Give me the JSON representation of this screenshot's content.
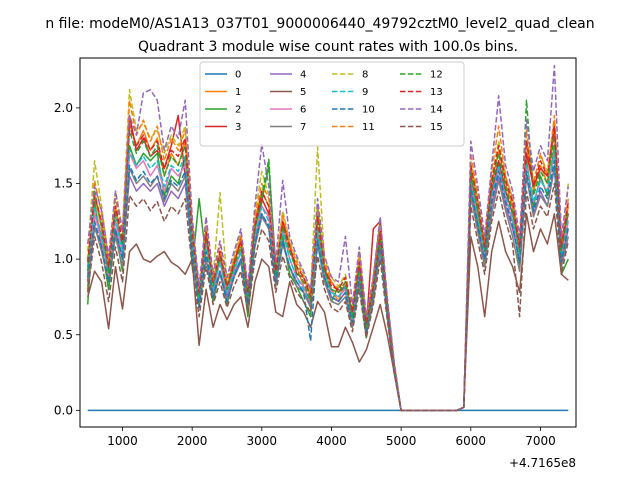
{
  "suptitle": "n file: modeM0/AS1A13_037T01_9000006440_49792cztM0_level2_quad_clean",
  "chart_data": {
    "type": "line",
    "title": "Quadrant 3 module wise count rates with 100.0s bins.",
    "xlabel": "",
    "ylabel": "",
    "x_offset_label": "+4.7165e8",
    "xlim": [
      390,
      7510
    ],
    "ylim": [
      -0.11,
      2.33
    ],
    "xticks": [
      1000,
      2000,
      3000,
      4000,
      5000,
      6000,
      7000
    ],
    "xtick_labels": [
      "1000",
      "2000",
      "3000",
      "4000",
      "5000",
      "6000",
      "7000"
    ],
    "yticks": [
      0.0,
      0.5,
      1.0,
      1.5,
      2.0
    ],
    "ytick_labels": [
      "0.0",
      "0.5",
      "1.0",
      "1.5",
      "2.0"
    ],
    "grid": false,
    "legend_location": "top-center",
    "legend_columns": 4,
    "x": [
      500,
      600,
      700,
      800,
      900,
      1000,
      1100,
      1200,
      1300,
      1400,
      1500,
      1600,
      1700,
      1800,
      1900,
      2000,
      2100,
      2200,
      2300,
      2400,
      2500,
      2600,
      2700,
      2800,
      2900,
      3000,
      3100,
      3200,
      3300,
      3400,
      3500,
      3600,
      3700,
      3800,
      3900,
      4000,
      4100,
      4200,
      4300,
      4400,
      4500,
      4600,
      4700,
      4800,
      4900,
      5000,
      5800,
      5900,
      6000,
      6100,
      6200,
      6300,
      6400,
      6500,
      6600,
      6700,
      6800,
      6900,
      7000,
      7100,
      7200,
      7300,
      7400
    ],
    "series": [
      {
        "name": "0",
        "color": "#1f77b4",
        "dash": "solid",
        "values": [
          0.0,
          0.0,
          0.0,
          0.0,
          0.0,
          0.0,
          0.0,
          0.0,
          0.0,
          0.0,
          0.0,
          0.0,
          0.0,
          0.0,
          0.0,
          0.0,
          0.0,
          0.0,
          0.0,
          0.0,
          0.0,
          0.0,
          0.0,
          0.0,
          0.0,
          0.0,
          0.0,
          0.0,
          0.0,
          0.0,
          0.0,
          0.0,
          0.0,
          0.0,
          0.0,
          0.0,
          0.0,
          0.0,
          0.0,
          0.0,
          0.0,
          0.0,
          0.0,
          0.0,
          0.0,
          0.0,
          0.0,
          0.0,
          0.0,
          0.0,
          0.0,
          0.0,
          0.0,
          0.0,
          0.0,
          0.0,
          0.0,
          0.0,
          0.0,
          0.0,
          0.0,
          0.0,
          0.0
        ]
      },
      {
        "name": "1",
        "color": "#ff7f0e",
        "dash": "solid",
        "values": [
          0.8,
          1.42,
          1.2,
          0.88,
          1.35,
          1.05,
          1.9,
          1.75,
          1.85,
          1.72,
          1.8,
          1.55,
          1.7,
          1.62,
          1.78,
          1.1,
          0.7,
          1.2,
          0.78,
          1.05,
          0.75,
          0.98,
          1.1,
          0.72,
          1.25,
          1.45,
          1.35,
          0.85,
          1.22,
          1.05,
          0.95,
          0.82,
          0.7,
          1.3,
          0.95,
          0.8,
          0.72,
          0.85,
          0.6,
          1.0,
          0.55,
          0.78,
          1.2,
          0.7,
          0.3,
          0.0,
          0.0,
          0.02,
          1.6,
          1.35,
          1.05,
          1.5,
          1.72,
          1.5,
          1.35,
          1.05,
          1.78,
          1.45,
          1.62,
          1.5,
          1.85,
          1.05,
          1.35
        ]
      },
      {
        "name": "2",
        "color": "#2ca02c",
        "dash": "solid",
        "values": [
          0.7,
          1.38,
          1.08,
          0.8,
          1.18,
          0.92,
          1.75,
          1.62,
          1.7,
          1.65,
          1.7,
          1.42,
          1.55,
          1.5,
          1.68,
          0.95,
          1.4,
          1.0,
          0.72,
          0.92,
          0.7,
          0.9,
          1.0,
          0.62,
          1.1,
          1.38,
          1.62,
          0.95,
          1.15,
          0.9,
          0.82,
          0.72,
          0.62,
          1.35,
          0.88,
          0.72,
          0.82,
          0.8,
          0.55,
          0.85,
          0.48,
          0.88,
          1.26,
          0.66,
          0.25,
          0.0,
          0.0,
          0.02,
          1.5,
          1.25,
          0.95,
          1.42,
          1.62,
          1.4,
          1.25,
          0.95,
          1.65,
          1.35,
          1.55,
          1.42,
          1.75,
          0.9,
          1.0
        ]
      },
      {
        "name": "3",
        "color": "#d62728",
        "dash": "solid",
        "values": [
          0.85,
          1.3,
          1.15,
          0.92,
          1.25,
          1.1,
          1.95,
          1.72,
          1.8,
          1.68,
          1.72,
          1.6,
          1.75,
          1.95,
          1.55,
          1.2,
          0.75,
          1.15,
          0.82,
          1.0,
          0.82,
          0.95,
          1.15,
          0.78,
          1.2,
          1.4,
          1.3,
          0.9,
          1.25,
          1.1,
          0.9,
          0.88,
          0.78,
          1.15,
          0.92,
          0.85,
          0.78,
          0.82,
          0.65,
          0.95,
          0.55,
          1.2,
          1.25,
          0.72,
          0.3,
          0.0,
          0.0,
          0.02,
          1.55,
          1.3,
          1.1,
          1.45,
          1.65,
          1.45,
          1.3,
          1.1,
          1.7,
          1.48,
          1.6,
          1.55,
          1.9,
          1.1,
          1.3
        ]
      },
      {
        "name": "4",
        "color": "#9467bd",
        "dash": "solid",
        "values": [
          0.95,
          1.2,
          1.1,
          0.95,
          1.2,
          1.0,
          1.55,
          1.45,
          1.5,
          1.45,
          1.5,
          1.35,
          1.45,
          1.4,
          1.5,
          1.05,
          0.72,
          1.0,
          0.78,
          0.92,
          0.75,
          0.9,
          1.0,
          0.7,
          1.1,
          1.3,
          1.2,
          0.85,
          1.1,
          0.95,
          0.85,
          0.78,
          0.7,
          1.1,
          0.85,
          0.75,
          0.72,
          0.78,
          0.6,
          0.85,
          0.55,
          0.75,
          1.05,
          0.65,
          0.28,
          0.0,
          0.0,
          0.02,
          1.45,
          1.2,
          1.0,
          1.35,
          1.55,
          1.35,
          1.2,
          1.0,
          1.55,
          1.3,
          1.45,
          1.35,
          1.6,
          0.98,
          1.2
        ]
      },
      {
        "name": "5",
        "color": "#8c564b",
        "dash": "solid",
        "values": [
          0.75,
          0.92,
          0.85,
          0.54,
          0.95,
          0.67,
          1.05,
          1.1,
          1.0,
          0.98,
          1.02,
          1.05,
          0.98,
          0.95,
          0.9,
          1.0,
          0.43,
          0.8,
          0.55,
          0.7,
          0.6,
          0.7,
          0.75,
          0.55,
          0.85,
          1.0,
          0.95,
          0.65,
          0.62,
          0.85,
          0.7,
          0.65,
          0.55,
          0.72,
          0.65,
          0.42,
          0.42,
          0.55,
          0.45,
          0.32,
          0.4,
          0.55,
          0.7,
          0.5,
          0.25,
          0.0,
          0.0,
          0.02,
          1.15,
          0.95,
          0.62,
          1.05,
          1.25,
          1.05,
          0.95,
          0.78,
          1.3,
          1.05,
          1.2,
          1.1,
          1.3,
          0.9,
          0.86
        ]
      },
      {
        "name": "6",
        "color": "#e377c2",
        "dash": "solid",
        "values": [
          0.9,
          1.3,
          1.12,
          0.9,
          1.25,
          1.05,
          1.7,
          1.6,
          1.65,
          1.55,
          1.62,
          1.45,
          1.6,
          1.55,
          1.62,
          1.15,
          0.75,
          1.1,
          0.8,
          0.98,
          0.78,
          0.92,
          1.05,
          0.72,
          1.15,
          1.35,
          1.28,
          0.9,
          1.2,
          1.0,
          0.88,
          0.82,
          0.72,
          1.2,
          0.9,
          0.78,
          0.75,
          0.8,
          0.6,
          0.9,
          0.55,
          0.8,
          1.15,
          0.68,
          0.28,
          0.0,
          0.0,
          0.02,
          1.5,
          1.28,
          1.05,
          1.4,
          1.6,
          1.4,
          1.25,
          1.02,
          1.62,
          1.38,
          1.52,
          1.45,
          1.7,
          1.02,
          1.25
        ]
      },
      {
        "name": "7",
        "color": "#7f7f7f",
        "dash": "solid",
        "values": [
          0.82,
          1.22,
          1.05,
          0.85,
          1.15,
          0.95,
          1.6,
          1.5,
          1.55,
          1.48,
          1.55,
          1.38,
          1.5,
          1.45,
          1.55,
          1.05,
          0.68,
          1.0,
          0.75,
          0.9,
          0.72,
          0.88,
          0.98,
          0.68,
          1.08,
          1.28,
          1.2,
          0.82,
          1.1,
          0.95,
          0.82,
          0.78,
          0.68,
          1.1,
          0.85,
          0.72,
          0.7,
          0.75,
          0.55,
          0.85,
          0.5,
          0.72,
          1.08,
          0.62,
          0.26,
          0.0,
          0.0,
          0.02,
          1.42,
          1.18,
          0.95,
          1.3,
          1.52,
          1.32,
          1.15,
          0.92,
          1.55,
          1.28,
          1.42,
          1.35,
          1.62,
          0.95,
          1.15
        ]
      },
      {
        "name": "8",
        "color": "#bcbd22",
        "dash": "dashed",
        "values": [
          1.05,
          1.65,
          1.35,
          1.0,
          1.45,
          1.2,
          2.12,
          1.85,
          1.9,
          1.8,
          1.85,
          1.7,
          1.82,
          1.75,
          1.88,
          1.25,
          0.8,
          1.25,
          0.88,
          1.44,
          0.85,
          1.02,
          1.18,
          0.8,
          1.3,
          1.58,
          1.42,
          0.95,
          1.32,
          1.12,
          1.0,
          0.9,
          0.78,
          1.74,
          1.0,
          0.88,
          0.82,
          0.9,
          0.68,
          1.05,
          0.6,
          0.85,
          1.22,
          0.75,
          0.32,
          0.0,
          0.0,
          0.02,
          1.65,
          1.4,
          1.12,
          1.55,
          1.78,
          1.55,
          1.4,
          1.12,
          1.82,
          1.52,
          1.68,
          1.58,
          1.92,
          1.12,
          1.5
        ]
      },
      {
        "name": "9",
        "color": "#17becf",
        "dash": "dashed",
        "values": [
          0.95,
          1.35,
          1.15,
          0.92,
          1.28,
          1.05,
          1.72,
          1.62,
          1.68,
          1.6,
          1.65,
          1.48,
          1.62,
          1.58,
          1.68,
          1.12,
          0.72,
          1.1,
          0.8,
          0.98,
          0.78,
          0.92,
          1.05,
          0.72,
          1.15,
          1.35,
          1.25,
          0.88,
          1.18,
          1.0,
          0.88,
          0.8,
          0.72,
          1.18,
          0.9,
          0.78,
          0.75,
          0.82,
          0.6,
          0.92,
          0.55,
          0.8,
          1.12,
          0.68,
          0.28,
          0.0,
          0.0,
          0.02,
          1.52,
          1.28,
          1.05,
          1.42,
          1.62,
          1.42,
          1.28,
          1.02,
          1.62,
          1.38,
          1.52,
          1.45,
          1.72,
          1.02,
          1.28
        ]
      },
      {
        "name": "10",
        "color": "#1f77b4",
        "dash": "dashed",
        "values": [
          0.88,
          1.25,
          1.08,
          0.85,
          1.2,
          1.0,
          1.62,
          1.52,
          1.58,
          1.5,
          1.55,
          1.4,
          1.52,
          1.48,
          1.58,
          1.05,
          0.68,
          1.05,
          0.75,
          0.92,
          0.72,
          0.88,
          1.0,
          0.7,
          1.1,
          1.3,
          1.22,
          0.85,
          1.12,
          0.95,
          0.85,
          0.78,
          0.46,
          1.12,
          0.88,
          0.75,
          0.72,
          0.78,
          0.58,
          0.88,
          0.52,
          0.78,
          1.1,
          0.65,
          0.26,
          0.0,
          0.0,
          0.02,
          1.48,
          1.22,
          1.0,
          1.38,
          1.58,
          1.38,
          1.22,
          0.98,
          1.58,
          1.32,
          1.48,
          1.4,
          1.65,
          0.98,
          1.22
        ]
      },
      {
        "name": "11",
        "color": "#ff7f0e",
        "dash": "dashed",
        "values": [
          1.0,
          1.52,
          1.3,
          0.98,
          1.4,
          1.15,
          2.05,
          1.82,
          1.92,
          1.78,
          1.88,
          1.65,
          1.8,
          1.72,
          1.85,
          1.22,
          0.78,
          1.22,
          0.85,
          1.1,
          0.82,
          1.0,
          1.15,
          0.78,
          1.28,
          1.5,
          1.4,
          0.92,
          1.3,
          1.1,
          0.98,
          0.88,
          0.75,
          1.35,
          0.98,
          0.85,
          0.8,
          0.88,
          0.65,
          1.02,
          0.58,
          0.82,
          1.2,
          0.72,
          0.3,
          0.0,
          0.0,
          0.02,
          1.7,
          1.42,
          1.1,
          1.58,
          1.88,
          1.55,
          1.4,
          1.1,
          1.85,
          1.5,
          1.7,
          1.55,
          1.95,
          1.1,
          1.4
        ]
      },
      {
        "name": "12",
        "color": "#2ca02c",
        "dash": "dashed",
        "values": [
          0.92,
          1.45,
          1.22,
          0.9,
          1.32,
          1.1,
          1.85,
          1.7,
          1.78,
          1.68,
          1.75,
          1.55,
          1.68,
          1.62,
          1.75,
          1.15,
          0.75,
          1.15,
          0.82,
          1.02,
          0.8,
          0.95,
          1.08,
          0.75,
          1.2,
          1.42,
          1.66,
          0.9,
          1.22,
          1.05,
          0.92,
          0.85,
          0.72,
          1.25,
          0.92,
          0.8,
          0.78,
          0.85,
          0.62,
          0.95,
          0.55,
          0.8,
          1.15,
          0.7,
          0.28,
          0.0,
          0.0,
          0.02,
          1.58,
          1.32,
          1.05,
          1.48,
          1.7,
          1.48,
          1.32,
          1.05,
          2.05,
          1.42,
          1.58,
          1.5,
          1.82,
          1.05,
          1.32
        ]
      },
      {
        "name": "13",
        "color": "#d62728",
        "dash": "dashed",
        "values": [
          0.98,
          1.42,
          1.25,
          0.95,
          1.35,
          1.12,
          1.88,
          1.75,
          1.82,
          1.72,
          1.78,
          1.6,
          1.72,
          1.68,
          1.8,
          1.18,
          0.78,
          1.18,
          0.85,
          1.05,
          0.82,
          0.98,
          1.12,
          0.78,
          1.22,
          1.45,
          1.35,
          0.92,
          1.25,
          1.08,
          0.95,
          0.88,
          0.75,
          1.28,
          0.95,
          0.82,
          0.8,
          0.88,
          0.65,
          0.98,
          0.58,
          0.82,
          1.18,
          0.72,
          0.3,
          0.0,
          0.0,
          0.02,
          1.62,
          1.38,
          1.08,
          1.52,
          1.75,
          1.52,
          1.38,
          1.08,
          1.78,
          1.48,
          1.65,
          1.55,
          1.88,
          1.08,
          1.38
        ]
      },
      {
        "name": "14",
        "color": "#9467bd",
        "dash": "dashed",
        "values": [
          1.1,
          1.48,
          1.32,
          1.02,
          1.45,
          1.18,
          1.95,
          1.82,
          2.1,
          2.12,
          2.05,
          1.72,
          1.88,
          1.8,
          2.05,
          1.28,
          0.82,
          1.28,
          0.9,
          1.12,
          0.88,
          1.05,
          1.2,
          0.82,
          1.35,
          1.76,
          1.48,
          0.98,
          1.52,
          1.15,
          1.02,
          0.92,
          0.8,
          1.4,
          1.02,
          0.88,
          0.85,
          1.15,
          0.7,
          1.08,
          0.62,
          0.88,
          1.28,
          0.75,
          0.32,
          0.0,
          0.0,
          0.02,
          1.78,
          1.48,
          1.15,
          1.62,
          2.08,
          1.62,
          1.45,
          1.15,
          1.92,
          1.58,
          1.75,
          1.65,
          2.28,
          1.15,
          1.48
        ]
      },
      {
        "name": "15",
        "color": "#8c564b",
        "dash": "dashed",
        "values": [
          0.78,
          1.15,
          0.98,
          0.72,
          1.08,
          0.85,
          1.42,
          1.35,
          1.4,
          1.32,
          1.38,
          1.25,
          1.35,
          1.3,
          1.4,
          0.95,
          0.62,
          0.95,
          0.7,
          0.85,
          0.68,
          0.82,
          0.92,
          0.65,
          1.0,
          1.2,
          1.12,
          0.78,
          1.02,
          0.88,
          0.78,
          0.72,
          0.65,
          1.02,
          0.8,
          0.68,
          0.65,
          0.72,
          0.52,
          0.8,
          0.48,
          0.7,
          1.0,
          0.6,
          0.25,
          0.0,
          0.0,
          0.02,
          1.35,
          1.12,
          0.9,
          1.25,
          1.45,
          1.25,
          1.1,
          0.62,
          1.45,
          1.2,
          1.35,
          1.28,
          1.5,
          0.9,
          1.12
        ]
      }
    ]
  }
}
